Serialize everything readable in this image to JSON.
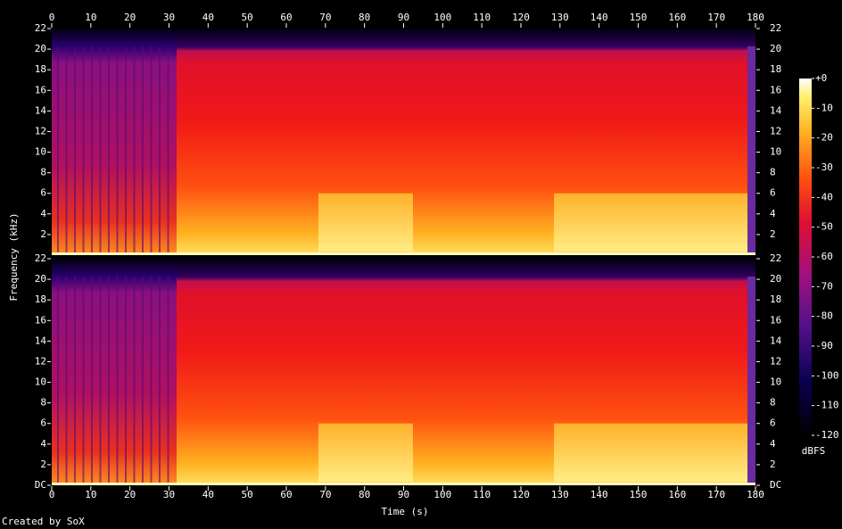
{
  "chart_data": {
    "type": "spectrogram",
    "x_label": "Time (s)",
    "y_label": "Frequency (kHz)",
    "xlim": [
      0,
      180
    ],
    "xticks": [
      0,
      10,
      20,
      30,
      40,
      50,
      60,
      70,
      80,
      90,
      100,
      110,
      120,
      130,
      140,
      150,
      160,
      170,
      180
    ],
    "channels": [
      {
        "ylim": [
          0,
          22
        ],
        "yticks": [
          2,
          4,
          6,
          8,
          10,
          12,
          14,
          16,
          18,
          20,
          22
        ]
      },
      {
        "ylim": [
          0,
          22
        ],
        "yticks": [
          {
            "value": 0,
            "label": "DC"
          },
          2,
          4,
          6,
          8,
          10,
          12,
          14,
          16,
          18,
          20,
          22
        ]
      }
    ],
    "colorbar": {
      "label": "dBFS",
      "zlim": [
        -120,
        0
      ],
      "ticks": [
        {
          "value": 0,
          "label": "+0"
        },
        -10,
        -20,
        -30,
        -40,
        -50,
        -60,
        -70,
        -80,
        -90,
        -100,
        -110,
        -120
      ]
    },
    "footer": "Created by SoX"
  }
}
